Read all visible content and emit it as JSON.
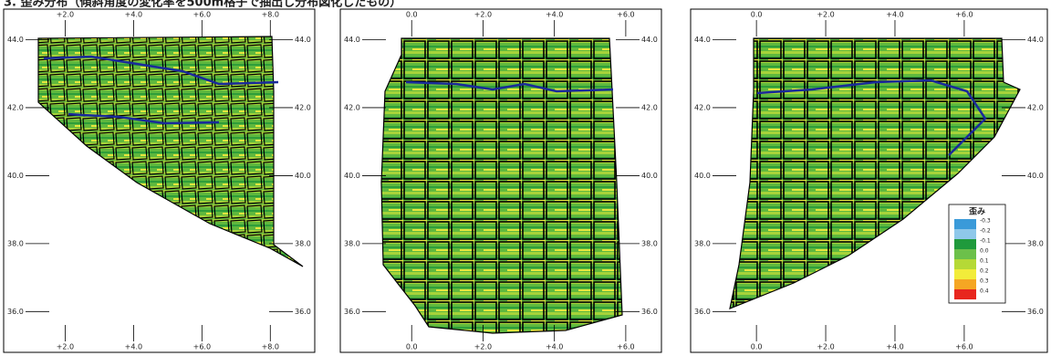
{
  "title": "3. 歪み分布（傾斜角度の変化率を500m格子で抽出し分布図化したもの）",
  "panels": [
    {
      "xlim": [
        0.2,
        9.3
      ],
      "ylim": [
        34.8,
        44.9
      ],
      "xticks": [
        {
          "value": 2,
          "label": "+2.0"
        },
        {
          "value": 4,
          "label": "+4.0"
        },
        {
          "value": 6,
          "label": "+6.0"
        },
        {
          "value": 8,
          "label": "+8.0"
        }
      ],
      "yticks": [
        {
          "value": 44,
          "label": "44.0"
        },
        {
          "value": 42,
          "label": "42.0"
        },
        {
          "value": 40,
          "label": "40.0"
        },
        {
          "value": 38,
          "label": "38.0"
        },
        {
          "value": 36,
          "label": "36.0"
        }
      ]
    },
    {
      "xlim": [
        -2.0,
        7.0
      ],
      "ylim": [
        34.8,
        44.9
      ],
      "xticks": [
        {
          "value": 0,
          "label": "0.0"
        },
        {
          "value": 2,
          "label": "+2.0"
        },
        {
          "value": 4,
          "label": "+4.0"
        },
        {
          "value": 6,
          "label": "+6.0"
        }
      ],
      "yticks": [
        {
          "value": 44,
          "label": "44.0"
        },
        {
          "value": 42,
          "label": "42.0"
        },
        {
          "value": 40,
          "label": "40.0"
        },
        {
          "value": 38,
          "label": "38.0"
        },
        {
          "value": 36,
          "label": "36.0"
        }
      ]
    },
    {
      "xlim": [
        -1.9,
        8.4
      ],
      "ylim": [
        34.8,
        44.9
      ],
      "xticks": [
        {
          "value": 0,
          "label": "0.0"
        },
        {
          "value": 2,
          "label": "+2.0"
        },
        {
          "value": 4,
          "label": "+4.0"
        },
        {
          "value": 6,
          "label": "+6.0"
        }
      ],
      "yticks": [
        {
          "value": 44,
          "label": "44.0"
        },
        {
          "value": 42,
          "label": "42.0"
        },
        {
          "value": 40,
          "label": "40.0"
        },
        {
          "value": 38,
          "label": "38.0"
        },
        {
          "value": 36,
          "label": "36.0"
        }
      ]
    }
  ],
  "legend": {
    "title": "歪み",
    "items": [
      {
        "label": "-0.3",
        "color": "#3a9ad9"
      },
      {
        "label": "-0.2",
        "color": "#8ec8ea"
      },
      {
        "label": "-0.1",
        "color": "#1f9a3c"
      },
      {
        "label": "0.0",
        "color": "#6cc04a"
      },
      {
        "label": "0.1",
        "color": "#b5d936"
      },
      {
        "label": "0.2",
        "color": "#f2ec3a"
      },
      {
        "label": "0.3",
        "color": "#f5a623"
      },
      {
        "label": "0.4",
        "color": "#e8261e"
      }
    ]
  }
}
